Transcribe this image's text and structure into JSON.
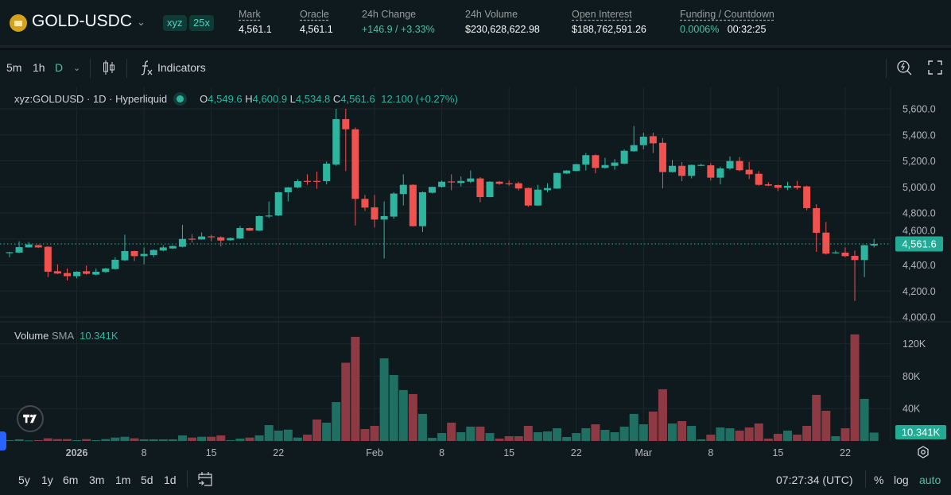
{
  "header": {
    "symbol": "GOLD-USDC",
    "badges": [
      "xyz",
      "25x"
    ],
    "stats": [
      {
        "label": "Mark",
        "value": "4,561.1"
      },
      {
        "label": "Oracle",
        "value": "4,561.1"
      },
      {
        "label": "24h Change",
        "value": "+146.9 / +3.33%"
      },
      {
        "label": "24h Volume",
        "value": "$230,628,622.98"
      },
      {
        "label": "Open Interest",
        "value": "$188,762,591.26"
      },
      {
        "label": "Funding / Countdown",
        "value": "0.0006%",
        "value2": "00:32:25"
      }
    ]
  },
  "toolbar": {
    "intervals": [
      "5m",
      "1h",
      "D"
    ],
    "active_interval": "D",
    "indicators_label": "Indicators"
  },
  "legend": {
    "symbol": "xyz:GOLDUSD · 1D · Hyperliquid",
    "o_label": "O",
    "o": "4,549.6",
    "h_label": "H",
    "h": "4,600.9",
    "l_label": "L",
    "l": "4,534.8",
    "c_label": "C",
    "c": "4,561.6",
    "change": "12.100 (+0.27%)"
  },
  "volume_legend": {
    "label": "Volume",
    "sma": "SMA",
    "value": "10.341K"
  },
  "bottom": {
    "ranges": [
      "5y",
      "1y",
      "6m",
      "3m",
      "1m",
      "5d",
      "1d"
    ],
    "time": "07:27:34 (UTC)",
    "percent": "%",
    "log": "log",
    "auto": "auto"
  },
  "colors": {
    "up": "#2db5a0",
    "down": "#f0524f",
    "vol_up": "#1f6f63",
    "vol_down": "#8e3a44",
    "background": "#0f1a1e"
  },
  "chart_data": {
    "type": "candlestick",
    "price_ticks": [
      "4,000.0",
      "4,200.0",
      "4,400.0",
      "4,600.0",
      "4,800.0",
      "5,000.0",
      "5,200.0",
      "5,400.0",
      "5,600.0"
    ],
    "price_range": [
      4000,
      5600
    ],
    "volume_ticks": [
      "40K",
      "80K",
      "120K"
    ],
    "x_ticks": [
      {
        "date": "2026-01-01",
        "label": "2026"
      },
      {
        "date": "2026-01-08",
        "label": "8"
      },
      {
        "date": "2026-01-15",
        "label": "15"
      },
      {
        "date": "2026-01-22",
        "label": "22"
      },
      {
        "date": "2026-02-01",
        "label": "Feb"
      },
      {
        "date": "2026-02-08",
        "label": "8"
      },
      {
        "date": "2026-02-15",
        "label": "15"
      },
      {
        "date": "2026-02-22",
        "label": "22"
      },
      {
        "date": "2026-03-01",
        "label": "Mar"
      },
      {
        "date": "2026-03-08",
        "label": "8"
      },
      {
        "date": "2026-03-15",
        "label": "15"
      },
      {
        "date": "2026-03-22",
        "label": "22"
      }
    ],
    "last_price": "4,561.6",
    "last_volume": "10.341K",
    "grid": true,
    "columns": [
      "date",
      "open",
      "high",
      "low",
      "close",
      "volume"
    ],
    "candles": [
      [
        "2025-12-25",
        4495,
        4501,
        4460,
        4498,
        1000
      ],
      [
        "2025-12-26",
        4495,
        4582,
        4490,
        4537,
        2000
      ],
      [
        "2025-12-27",
        4535,
        4576,
        4533,
        4558,
        700
      ],
      [
        "2025-12-28",
        4552,
        4556,
        4530,
        4535,
        1000
      ],
      [
        "2025-12-29",
        4540,
        4545,
        4307,
        4348,
        3300
      ],
      [
        "2025-12-30",
        4352,
        4405,
        4330,
        4334,
        2300
      ],
      [
        "2025-12-31",
        4338,
        4373,
        4281,
        4314,
        2300
      ],
      [
        "2026-01-01",
        4314,
        4352,
        4297,
        4348,
        1000
      ],
      [
        "2026-01-02",
        4352,
        4395,
        4325,
        4332,
        2300
      ],
      [
        "2026-01-03",
        4326,
        4373,
        4320,
        4348,
        1000
      ],
      [
        "2026-01-04",
        4346,
        4378,
        4340,
        4373,
        2300
      ],
      [
        "2026-01-05",
        4369,
        4460,
        4365,
        4440,
        4200
      ],
      [
        "2026-01-06",
        4436,
        4633,
        4430,
        4507,
        5200
      ],
      [
        "2026-01-07",
        4507,
        4510,
        4430,
        4468,
        3300
      ],
      [
        "2026-01-08",
        4468,
        4535,
        4405,
        4485,
        2000
      ],
      [
        "2026-01-09",
        4476,
        4520,
        4460,
        4515,
        2000
      ],
      [
        "2026-01-10",
        4511,
        4552,
        4505,
        4535,
        2000
      ],
      [
        "2026-01-11",
        4527,
        4550,
        4523,
        4546,
        2000
      ],
      [
        "2026-01-12",
        4540,
        4708,
        4535,
        4600,
        6900
      ],
      [
        "2026-01-13",
        4602,
        4637,
        4572,
        4597,
        4200
      ],
      [
        "2026-01-14",
        4596,
        4650,
        4594,
        4619,
        5200
      ],
      [
        "2026-01-15",
        4620,
        4633,
        4582,
        4615,
        5200
      ],
      [
        "2026-01-16",
        4613,
        4620,
        4542,
        4588,
        6900
      ],
      [
        "2026-01-17",
        4590,
        4612,
        4586,
        4607,
        1000
      ],
      [
        "2026-01-18",
        4603,
        4700,
        4600,
        4684,
        2900
      ],
      [
        "2026-01-19",
        4684,
        4688,
        4660,
        4664,
        4200
      ],
      [
        "2026-01-20",
        4664,
        4780,
        4660,
        4776,
        6900
      ],
      [
        "2026-01-21",
        4775,
        4888,
        4761,
        4780,
        19600
      ],
      [
        "2026-01-22",
        4780,
        4963,
        4775,
        4959,
        12800
      ],
      [
        "2026-01-23",
        4959,
        5000,
        4888,
        4996,
        14000
      ],
      [
        "2026-01-24",
        4996,
        5060,
        4990,
        5044,
        4200
      ],
      [
        "2026-01-25",
        5046,
        5097,
        5016,
        5042,
        7800
      ],
      [
        "2026-01-26",
        5046,
        5118,
        4985,
        5040,
        26500
      ],
      [
        "2026-01-27",
        5044,
        5195,
        5020,
        5179,
        22600
      ],
      [
        "2026-01-28",
        5172,
        5600,
        5162,
        5521,
        48000
      ],
      [
        "2026-01-29",
        5521,
        5600,
        5122,
        5443,
        96500
      ],
      [
        "2026-01-30",
        5443,
        5457,
        4704,
        4908,
        128500
      ],
      [
        "2026-01-31",
        4908,
        4938,
        4816,
        4841,
        14700
      ],
      [
        "2026-02-01",
        4843,
        4938,
        4688,
        4749,
        18600
      ],
      [
        "2026-02-02",
        4749,
        4888,
        4450,
        4776,
        102000
      ],
      [
        "2026-02-03",
        4772,
        4960,
        4755,
        4949,
        81400
      ],
      [
        "2026-02-04",
        4945,
        5097,
        4857,
        5016,
        62800
      ],
      [
        "2026-02-05",
        5016,
        5020,
        4695,
        4698,
        57900
      ],
      [
        "2026-02-06",
        4698,
        4965,
        4653,
        4959,
        33400
      ],
      [
        "2026-02-07",
        4955,
        5002,
        4950,
        5000,
        3900
      ],
      [
        "2026-02-08",
        5000,
        5050,
        4995,
        5040,
        9800
      ],
      [
        "2026-02-09",
        5042,
        5097,
        4975,
        5038,
        22600
      ],
      [
        "2026-02-10",
        5030,
        5081,
        5004,
        5046,
        10800
      ],
      [
        "2026-02-11",
        5040,
        5126,
        5030,
        5065,
        17700
      ],
      [
        "2026-02-12",
        5065,
        5075,
        4882,
        4922,
        17700
      ],
      [
        "2026-02-13",
        4922,
        5044,
        4920,
        5040,
        9800
      ],
      [
        "2026-02-14",
        5040,
        5046,
        5016,
        5024,
        2900
      ],
      [
        "2026-02-15",
        5028,
        5050,
        5008,
        5025,
        5900
      ],
      [
        "2026-02-16",
        5028,
        5040,
        4973,
        4988,
        5900
      ],
      [
        "2026-02-17",
        4991,
        4995,
        4847,
        4857,
        18600
      ],
      [
        "2026-02-18",
        4857,
        5016,
        4855,
        4979,
        10800
      ],
      [
        "2026-02-19",
        4975,
        5028,
        4959,
        4991,
        11800
      ],
      [
        "2026-02-20",
        4987,
        5110,
        4985,
        5107,
        15700
      ],
      [
        "2026-02-21",
        5103,
        5130,
        5100,
        5126,
        4900
      ],
      [
        "2026-02-22",
        5122,
        5178,
        5120,
        5175,
        9800
      ],
      [
        "2026-02-23",
        5171,
        5260,
        5126,
        5244,
        15700
      ],
      [
        "2026-02-24",
        5244,
        5250,
        5105,
        5146,
        20600
      ],
      [
        "2026-02-25",
        5146,
        5224,
        5140,
        5168,
        13700
      ],
      [
        "2026-02-26",
        5162,
        5213,
        5132,
        5187,
        10800
      ],
      [
        "2026-02-27",
        5179,
        5289,
        5175,
        5278,
        17700
      ],
      [
        "2026-02-28",
        5274,
        5468,
        5270,
        5321,
        33400
      ],
      [
        "2026-03-01",
        5321,
        5417,
        5289,
        5386,
        20600
      ],
      [
        "2026-03-02",
        5390,
        5417,
        5260,
        5335,
        36300
      ],
      [
        "2026-03-03",
        5339,
        5376,
        4989,
        5114,
        63800
      ],
      [
        "2026-03-04",
        5114,
        5207,
        5110,
        5162,
        21600
      ],
      [
        "2026-03-05",
        5162,
        5191,
        5044,
        5085,
        24500
      ],
      [
        "2026-03-06",
        5085,
        5172,
        5065,
        5169,
        18600
      ],
      [
        "2026-03-07",
        5164,
        5179,
        5160,
        5169,
        2000
      ],
      [
        "2026-03-08",
        5166,
        5183,
        5050,
        5071,
        7800
      ],
      [
        "2026-03-09",
        5071,
        5156,
        5020,
        5142,
        16700
      ],
      [
        "2026-03-10",
        5142,
        5234,
        5132,
        5199,
        15700
      ],
      [
        "2026-03-11",
        5199,
        5230,
        5120,
        5128,
        12800
      ],
      [
        "2026-03-12",
        5132,
        5193,
        5061,
        5097,
        16700
      ],
      [
        "2026-03-13",
        5101,
        5122,
        5010,
        5016,
        21600
      ],
      [
        "2026-03-14",
        5020,
        5036,
        5006,
        5010,
        2900
      ],
      [
        "2026-03-15",
        5014,
        5018,
        4969,
        4993,
        8800
      ],
      [
        "2026-03-16",
        4993,
        5040,
        4975,
        5008,
        12800
      ],
      [
        "2026-03-17",
        5008,
        5046,
        4979,
        4993,
        7800
      ],
      [
        "2026-03-18",
        5004,
        5010,
        4820,
        4837,
        18600
      ],
      [
        "2026-03-19",
        4837,
        4867,
        4501,
        4647,
        56900
      ],
      [
        "2026-03-20",
        4649,
        4731,
        4480,
        4487,
        37300
      ],
      [
        "2026-03-21",
        4493,
        4511,
        4487,
        4497,
        5900
      ],
      [
        "2026-03-22",
        4495,
        4535,
        4460,
        4468,
        15700
      ],
      [
        "2026-03-23",
        4470,
        4511,
        4124,
        4438,
        131500
      ],
      [
        "2026-03-24",
        4438,
        4555,
        4307,
        4552,
        52000
      ],
      [
        "2026-03-25",
        4549.6,
        4600.9,
        4534.8,
        4561.6,
        10341
      ]
    ]
  }
}
